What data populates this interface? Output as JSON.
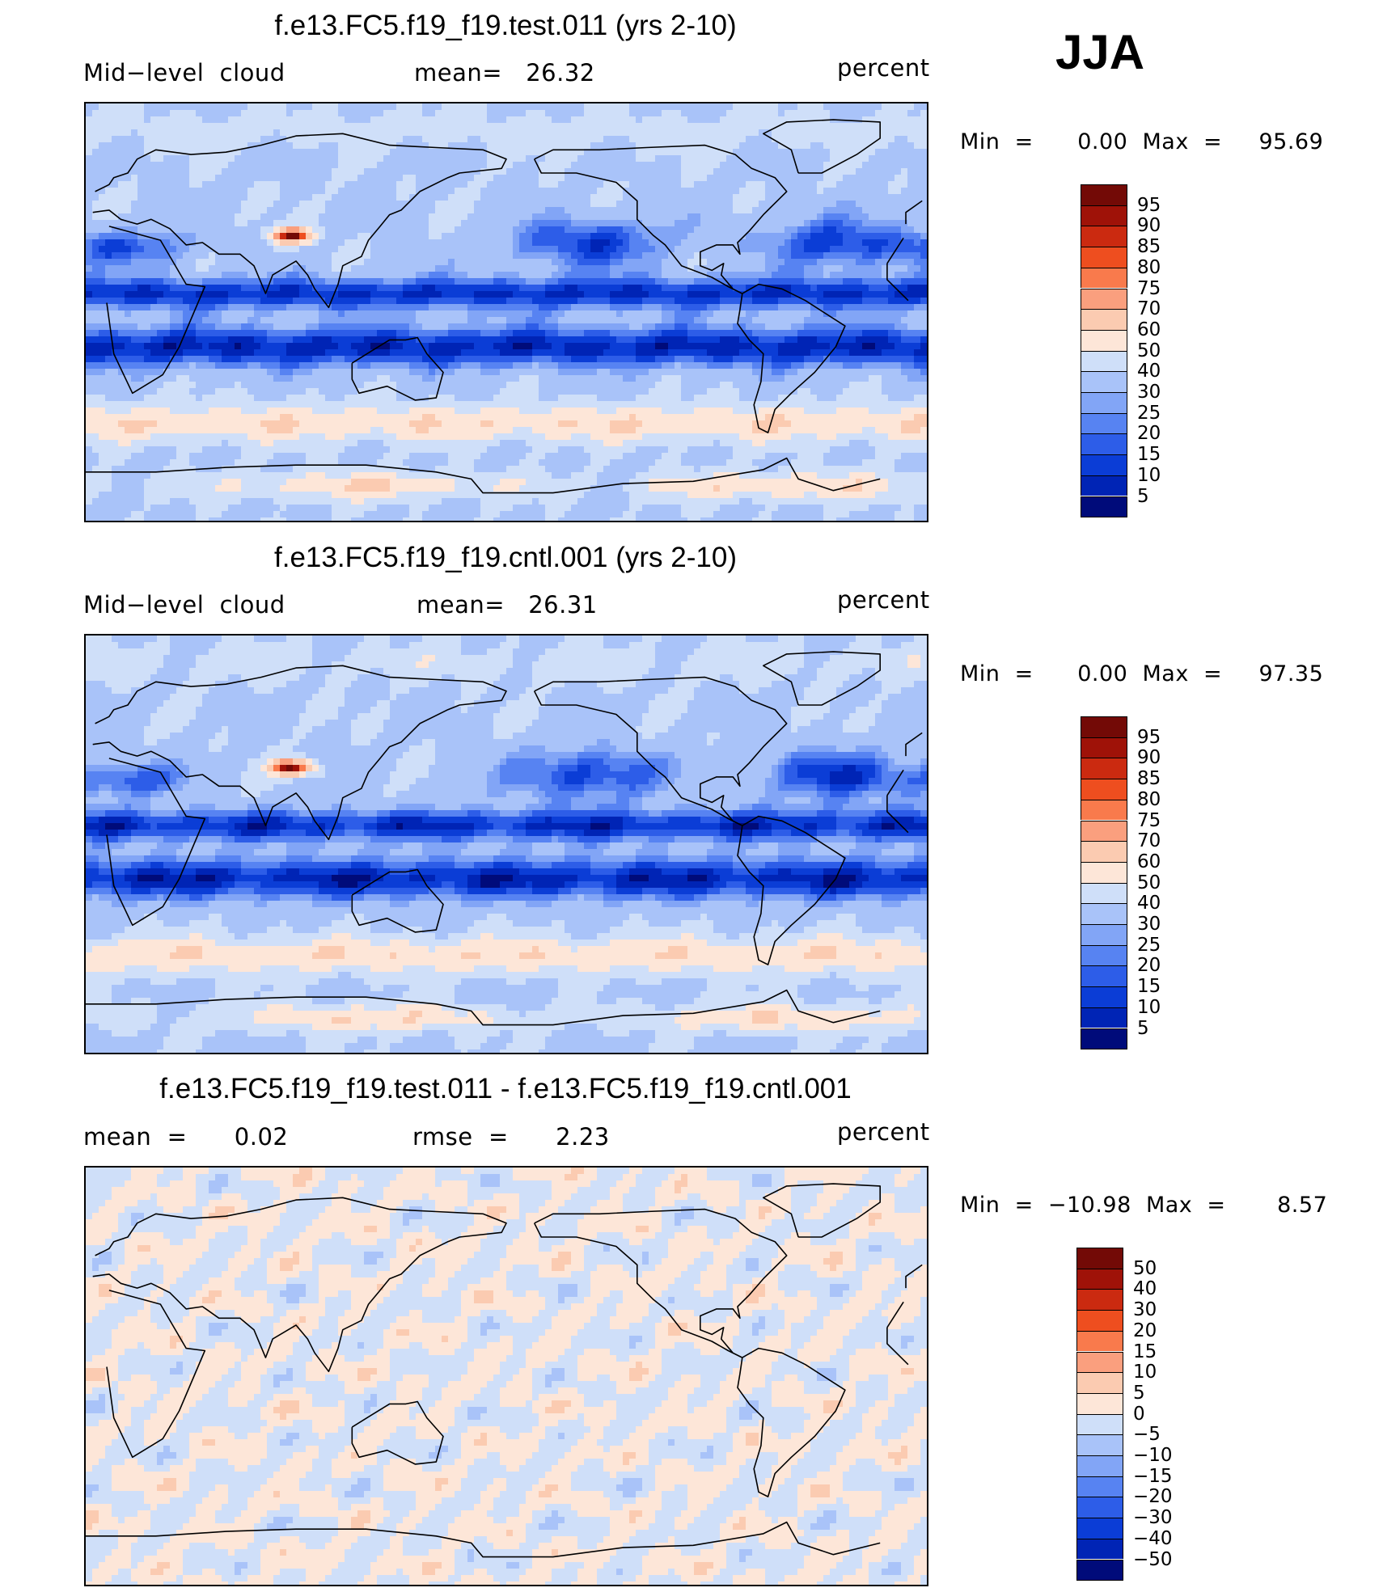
{
  "season": "JJA",
  "colors": {
    "scale": [
      "#000b7a",
      "#0024b5",
      "#0b3dd6",
      "#2d5de8",
      "#5783f2",
      "#82a5f6",
      "#a9c3f9",
      "#cfdff9",
      "#fde6d8",
      "#fbcbb1",
      "#fa9f7e",
      "#f97a4c",
      "#ee4e1f",
      "#cb2a10",
      "#9f1208",
      "#730a06"
    ],
    "coast": "#000000"
  },
  "panels": [
    {
      "id": "test",
      "title": "f.e13.FC5.f19_f19.test.011 (yrs 2-10)",
      "left_text": "Mid−level  cloud",
      "center_text": "mean=   26.32",
      "units": "percent",
      "minmax": "Min  =      0.00  Max  =     95.69",
      "levels": [
        "95",
        "90",
        "85",
        "80",
        "75",
        "70",
        "60",
        "50",
        "40",
        "30",
        "25",
        "20",
        "15",
        "10",
        "5"
      ],
      "kind": "abs"
    },
    {
      "id": "cntl",
      "title": "f.e13.FC5.f19_f19.cntl.001 (yrs 2-10)",
      "left_text": "Mid−level  cloud",
      "center_text": "mean=   26.31",
      "units": "percent",
      "minmax": "Min  =      0.00  Max  =     97.35",
      "levels": [
        "95",
        "90",
        "85",
        "80",
        "75",
        "70",
        "60",
        "50",
        "40",
        "30",
        "25",
        "20",
        "15",
        "10",
        "5"
      ],
      "kind": "abs"
    },
    {
      "id": "diff",
      "title": "f.e13.FC5.f19_f19.test.011 - f.e13.FC5.f19_f19.cntl.001",
      "left_text": "mean  =      0.02",
      "center_text": "rmse  =      2.23",
      "units": "percent",
      "minmax": "Min  =  −10.98  Max  =       8.57",
      "levels": [
        "50",
        "40",
        "30",
        "20",
        "15",
        "10",
        "5",
        "0",
        "−5",
        "−10",
        "−15",
        "−20",
        "−30",
        "−40",
        "−50"
      ],
      "kind": "diff"
    }
  ],
  "chart_data": {
    "type": "heatmap",
    "title": "Mid-level cloud, JJA",
    "units": "percent",
    "panels": [
      {
        "title": "f.e13.FC5.f19_f19.test.011 (yrs 2-10)",
        "mean": 26.32,
        "min": 0.0,
        "max": 95.69,
        "contour_levels": [
          5,
          10,
          15,
          20,
          25,
          30,
          40,
          50,
          60,
          70,
          75,
          80,
          85,
          90,
          95
        ]
      },
      {
        "title": "f.e13.FC5.f19_f19.cntl.001 (yrs 2-10)",
        "mean": 26.31,
        "min": 0.0,
        "max": 97.35,
        "contour_levels": [
          5,
          10,
          15,
          20,
          25,
          30,
          40,
          50,
          60,
          70,
          75,
          80,
          85,
          90,
          95
        ]
      },
      {
        "title": "f.e13.FC5.f19_f19.test.011 - f.e13.FC5.f19_f19.cntl.001",
        "mean": 0.02,
        "rmse": 2.23,
        "min": -10.98,
        "max": 8.57,
        "contour_levels": [
          -50,
          -40,
          -30,
          -20,
          -15,
          -10,
          -5,
          0,
          5,
          10,
          15,
          20,
          30,
          40,
          50
        ]
      }
    ],
    "projection": "cylindrical equidistant, centered 180E"
  }
}
